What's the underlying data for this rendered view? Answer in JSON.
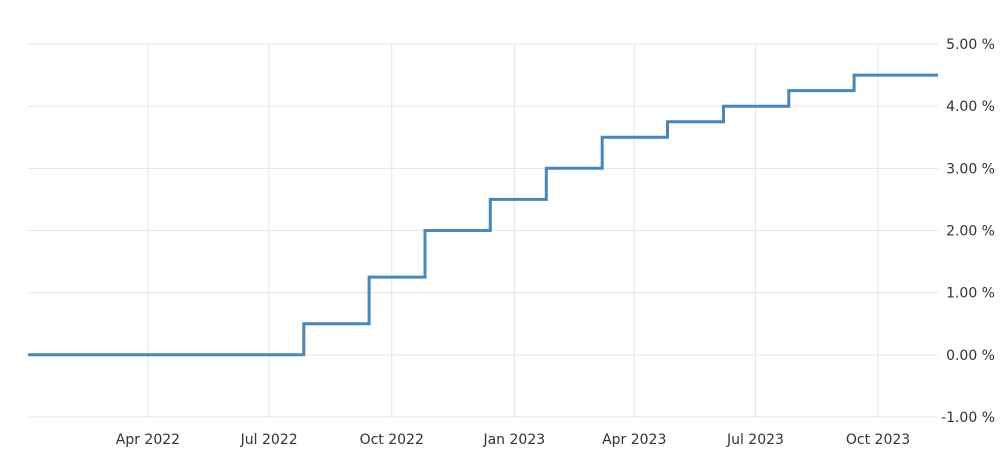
{
  "chart_data": {
    "type": "line",
    "step": true,
    "x_axis": {
      "type": "date",
      "range": [
        "2022-01-01",
        "2023-11-15"
      ],
      "ticks": [
        {
          "date": "2022-04-01",
          "label": "Apr 2022"
        },
        {
          "date": "2022-07-01",
          "label": "Jul 2022"
        },
        {
          "date": "2022-10-01",
          "label": "Oct 2022"
        },
        {
          "date": "2023-01-01",
          "label": "Jan 2023"
        },
        {
          "date": "2023-04-01",
          "label": "Apr 2023"
        },
        {
          "date": "2023-07-01",
          "label": "Jul 2023"
        },
        {
          "date": "2023-10-01",
          "label": "Oct 2023"
        }
      ]
    },
    "y_axis": {
      "position": "right",
      "unit": "%",
      "ylim": [
        -1,
        5
      ],
      "ticks": [
        {
          "value": 5,
          "label": "5.00 %"
        },
        {
          "value": 4,
          "label": "4.00 %"
        },
        {
          "value": 3,
          "label": "3.00 %"
        },
        {
          "value": 2,
          "label": "2.00 %"
        },
        {
          "value": 1,
          "label": "1.00 %"
        },
        {
          "value": 0,
          "label": "0.00 %"
        },
        {
          "value": -1,
          "label": "-1.00 %"
        }
      ]
    },
    "grid": true,
    "series": [
      {
        "color": "#4a86b8",
        "points": [
          {
            "x": "2022-01-01",
            "y": 0.0
          },
          {
            "x": "2022-07-27",
            "y": 0.5
          },
          {
            "x": "2022-09-14",
            "y": 1.25
          },
          {
            "x": "2022-10-26",
            "y": 2.0
          },
          {
            "x": "2022-12-14",
            "y": 2.5
          },
          {
            "x": "2023-01-25",
            "y": 3.0
          },
          {
            "x": "2023-03-08",
            "y": 3.5
          },
          {
            "x": "2023-04-26",
            "y": 3.75
          },
          {
            "x": "2023-06-07",
            "y": 4.0
          },
          {
            "x": "2023-07-26",
            "y": 4.25
          },
          {
            "x": "2023-09-13",
            "y": 4.5
          },
          {
            "x": "2023-11-15",
            "y": 4.5
          }
        ]
      }
    ]
  }
}
